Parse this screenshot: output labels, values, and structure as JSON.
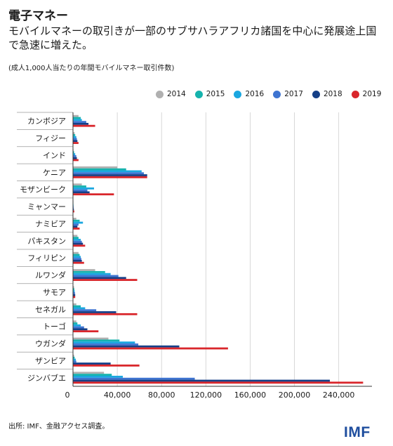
{
  "header": {
    "title": "電子マネー",
    "subtitle": "モバイルマネーの取引きが一部のサブサハラアフリカ諸国を中心に発展途上国で急速に増えた。",
    "note": "(成人1,000人当たりの年間モバイルマネー取引件数)"
  },
  "footer": {
    "source": "出所: IMF、金融アクセス調査。",
    "logo": "IMF"
  },
  "chart_data": {
    "type": "bar",
    "orientation": "horizontal",
    "categories": [
      "カンボジア",
      "フィジー",
      "インド",
      "ケニア",
      "モザンビーク",
      "ミャンマー",
      "ナミビア",
      "パキスタン",
      "フィリピン",
      "ルワンダ",
      "サモア",
      "セネガル",
      "トーゴ",
      "ウガンダ",
      "ザンビア",
      "ジンバブエ"
    ],
    "series": [
      {
        "name": "2014",
        "color": "#b0b0b0",
        "values": [
          5000,
          1500,
          500,
          40000,
          8000,
          200,
          3000,
          4000,
          5000,
          20000,
          1000,
          3000,
          3000,
          32000,
          1000,
          28000
        ]
      },
      {
        "name": "2015",
        "color": "#16b3ad",
        "values": [
          7000,
          2000,
          1000,
          48000,
          12000,
          300,
          6000,
          5000,
          6000,
          29000,
          1200,
          7000,
          4000,
          42000,
          1500,
          35000
        ]
      },
      {
        "name": "2016",
        "color": "#1aa7e0",
        "values": [
          8000,
          3000,
          2000,
          62000,
          19000,
          500,
          9000,
          7000,
          7000,
          34000,
          1500,
          11000,
          7000,
          56000,
          2500,
          45000
        ]
      },
      {
        "name": "2017",
        "color": "#3e74d1",
        "values": [
          12000,
          3500,
          3000,
          64000,
          13000,
          600,
          5000,
          8000,
          7500,
          41000,
          1800,
          21000,
          10000,
          59000,
          3000,
          110000
        ]
      },
      {
        "name": "2018",
        "color": "#153f87",
        "values": [
          14000,
          4000,
          3500,
          67000,
          15000,
          800,
          4000,
          9000,
          8000,
          48000,
          2000,
          39000,
          13000,
          96000,
          34000,
          232000
        ]
      },
      {
        "name": "2019",
        "color": "#d9262b",
        "values": [
          20000,
          5000,
          5000,
          67000,
          37000,
          1200,
          6000,
          11000,
          10000,
          58000,
          2000,
          58000,
          23000,
          140000,
          60000,
          262000
        ]
      }
    ],
    "xlim": [
      0,
      270000
    ],
    "xticks": [
      0,
      40000,
      80000,
      120000,
      160000,
      200000,
      240000
    ],
    "xtick_labels": [
      "0",
      "40,000",
      "80,000",
      "120,000",
      "160,000",
      "200,000",
      "240,000"
    ],
    "grid": true,
    "legend_position": "top"
  }
}
